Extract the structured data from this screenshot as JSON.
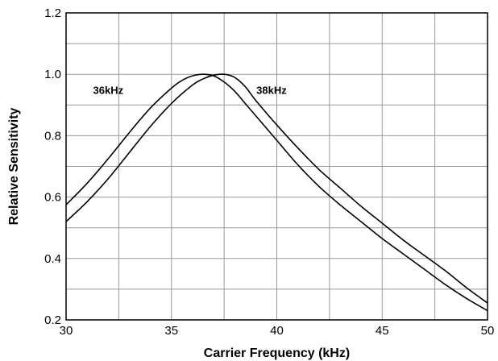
{
  "chart_data": {
    "type": "line",
    "title": "",
    "xlabel": "Carrier Frequency (kHz)",
    "ylabel": "Relative Sensitivity",
    "xlim": [
      30,
      50
    ],
    "ylim": [
      0.2,
      1.2
    ],
    "x_ticks": [
      30,
      35,
      40,
      45,
      50
    ],
    "x_tick_labels": [
      "30",
      "35",
      "40",
      "45",
      "50"
    ],
    "y_ticks": [
      0.2,
      0.4,
      0.6,
      0.8,
      1.0,
      1.2
    ],
    "y_tick_labels": [
      "0.2",
      "0.4",
      "0.6",
      "0.8",
      "1.0",
      "1.2"
    ],
    "grid": true,
    "legend": "none",
    "line_color": "#000000",
    "series": [
      {
        "name": "36kHz",
        "x": [
          30,
          31,
          32,
          33,
          34,
          35,
          35.5,
          36,
          36.5,
          37,
          37.5,
          38,
          38.5,
          39,
          40,
          41,
          42,
          43,
          44,
          45,
          46,
          47,
          48,
          49,
          50
        ],
        "y": [
          0.575,
          0.645,
          0.725,
          0.81,
          0.89,
          0.955,
          0.98,
          0.995,
          1.0,
          0.995,
          0.975,
          0.945,
          0.905,
          0.865,
          0.785,
          0.705,
          0.635,
          0.575,
          0.52,
          0.465,
          0.415,
          0.365,
          0.315,
          0.27,
          0.23
        ]
      },
      {
        "name": "38kHz",
        "x": [
          30,
          31,
          32,
          33,
          34,
          35,
          36,
          36.5,
          37,
          37.5,
          38,
          38.5,
          39,
          40,
          41,
          42,
          43,
          44,
          45,
          46,
          47,
          48,
          49,
          50
        ],
        "y": [
          0.52,
          0.585,
          0.66,
          0.745,
          0.83,
          0.905,
          0.965,
          0.985,
          0.997,
          1.0,
          0.99,
          0.96,
          0.915,
          0.835,
          0.76,
          0.69,
          0.63,
          0.57,
          0.515,
          0.46,
          0.41,
          0.36,
          0.305,
          0.255
        ]
      }
    ],
    "annotations": [
      {
        "text": "36kHz",
        "x": 32.0,
        "y": 0.95
      },
      {
        "text": "38kHz",
        "x": 39.75,
        "y": 0.95
      }
    ]
  }
}
